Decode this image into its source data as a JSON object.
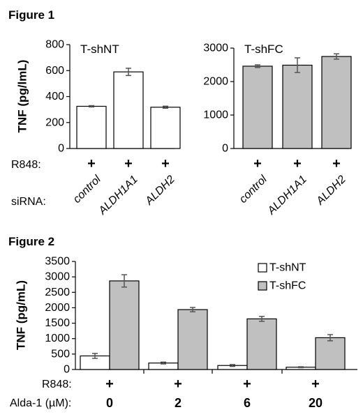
{
  "figure1": {
    "title": "Figure 1",
    "row_labels": {
      "treatment": "R848:",
      "knockdown": "siRNA:"
    },
    "plus_sign": "+",
    "categories": [
      "control",
      "ALDH1A1",
      "ALDH2"
    ]
  },
  "figure2": {
    "title": "Figure 2",
    "row_labels": {
      "treatment": "R848:",
      "dose": "Alda-1 (µM):"
    },
    "plus_sign": "+",
    "doses": [
      "0",
      "2",
      "6",
      "20"
    ]
  },
  "colors": {
    "white_bar": "#ffffff",
    "gray_bar": "#c0c0c0",
    "stroke": "#000000",
    "error": "#555555"
  },
  "chart_data": [
    {
      "type": "bar",
      "panel_label": "T-shNT",
      "ylabel": "TNF (pg/lmL)",
      "categories": [
        "control",
        "ALDH1A1",
        "ALDH2"
      ],
      "values": [
        325,
        590,
        318
      ],
      "errors": [
        5,
        28,
        8
      ],
      "ylim": [
        0,
        800
      ],
      "yticks": [
        "0",
        "200",
        "400",
        "600",
        "800"
      ],
      "bar_color": "#ffffff"
    },
    {
      "type": "bar",
      "panel_label": "T-shFC",
      "ylabel": "",
      "categories": [
        "control",
        "ALDH1A1",
        "ALDH2"
      ],
      "values": [
        2460,
        2490,
        2750
      ],
      "errors": [
        40,
        220,
        80
      ],
      "ylim": [
        0,
        3000
      ],
      "yticks": [
        "0",
        "1000",
        "2000",
        "3000"
      ],
      "bar_color": "#c0c0c0"
    },
    {
      "type": "bar",
      "ylabel": "TNF (pg/mL)",
      "categories": [
        "0",
        "2",
        "6",
        "20"
      ],
      "ylim": [
        0,
        3500
      ],
      "yticks": [
        "0",
        "500",
        "1000",
        "1500",
        "2000",
        "2500",
        "3000",
        "3500"
      ],
      "legend_position": "top-right",
      "series": [
        {
          "name": "T-shNT",
          "values": [
            440,
            210,
            130,
            75
          ],
          "errors": [
            80,
            30,
            30,
            15
          ],
          "color": "#ffffff"
        },
        {
          "name": "T-shFC",
          "values": [
            2870,
            1940,
            1640,
            1030
          ],
          "errors": [
            200,
            70,
            80,
            100
          ],
          "color": "#c0c0c0"
        }
      ]
    }
  ]
}
